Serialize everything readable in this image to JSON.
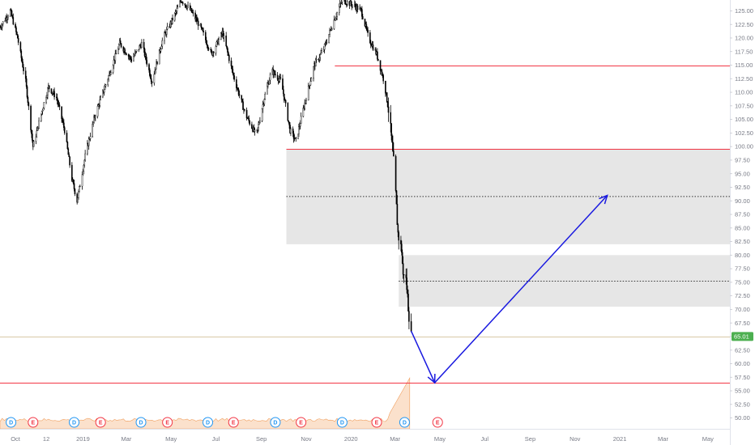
{
  "chart_data": {
    "type": "candlestick",
    "title": "",
    "xlabel": "",
    "ylabel": "",
    "ylim": [
      48,
      127
    ],
    "x_range": [
      "2018-09-10",
      "2021-05-31"
    ],
    "y_ticks": [
      "50.00",
      "52.50",
      "55.00",
      "57.50",
      "60.00",
      "62.50",
      "65.00",
      "67.50",
      "70.00",
      "72.50",
      "75.00",
      "77.50",
      "80.00",
      "82.50",
      "85.00",
      "87.50",
      "90.00",
      "92.50",
      "95.00",
      "97.50",
      "100.00",
      "102.50",
      "105.00",
      "107.50",
      "110.00",
      "112.50",
      "115.00",
      "117.50",
      "120.00",
      "122.50",
      "125.00"
    ],
    "x_ticks": [
      {
        "label": "Oct",
        "date": "2018-10-01"
      },
      {
        "label": "12",
        "date": "2018-11-12"
      },
      {
        "label": "2019",
        "date": "2019-01-01"
      },
      {
        "label": "Mar",
        "date": "2019-03-01"
      },
      {
        "label": "May",
        "date": "2019-05-01"
      },
      {
        "label": "Jul",
        "date": "2019-07-01"
      },
      {
        "label": "Sep",
        "date": "2019-09-01"
      },
      {
        "label": "Nov",
        "date": "2019-11-01"
      },
      {
        "label": "2020",
        "date": "2020-01-01"
      },
      {
        "label": "Mar",
        "date": "2020-03-01"
      },
      {
        "label": "May",
        "date": "2020-05-01"
      },
      {
        "label": "Jul",
        "date": "2020-07-01"
      },
      {
        "label": "Sep",
        "date": "2020-09-01"
      },
      {
        "label": "Nov",
        "date": "2020-11-01"
      },
      {
        "label": "2021",
        "date": "2021-01-01"
      },
      {
        "label": "Mar",
        "date": "2021-03-01"
      },
      {
        "label": "May",
        "date": "2021-05-01"
      }
    ],
    "last_price": "65.01",
    "price_path": [
      [
        "2018-09-10",
        122
      ],
      [
        "2018-09-24",
        125
      ],
      [
        "2018-10-04",
        120
      ],
      [
        "2018-10-15",
        112
      ],
      [
        "2018-10-25",
        100
      ],
      [
        "2018-11-05",
        106
      ],
      [
        "2018-11-15",
        111
      ],
      [
        "2018-11-26",
        109
      ],
      [
        "2018-12-07",
        103
      ],
      [
        "2018-12-17",
        94
      ],
      [
        "2018-12-24",
        90
      ],
      [
        "2019-01-05",
        99
      ],
      [
        "2019-01-18",
        106
      ],
      [
        "2019-02-05",
        113
      ],
      [
        "2019-02-20",
        119
      ],
      [
        "2019-03-08",
        116
      ],
      [
        "2019-03-22",
        119
      ],
      [
        "2019-04-05",
        112
      ],
      [
        "2019-04-20",
        120
      ],
      [
        "2019-05-05",
        124
      ],
      [
        "2019-05-15",
        127
      ],
      [
        "2019-05-28",
        125
      ],
      [
        "2019-06-10",
        122
      ],
      [
        "2019-06-25",
        117
      ],
      [
        "2019-07-10",
        121
      ],
      [
        "2019-07-25",
        113
      ],
      [
        "2019-08-10",
        106
      ],
      [
        "2019-08-25",
        102
      ],
      [
        "2019-09-05",
        109
      ],
      [
        "2019-09-15",
        114
      ],
      [
        "2019-09-28",
        112
      ],
      [
        "2019-10-10",
        103
      ],
      [
        "2019-10-18",
        101
      ],
      [
        "2019-10-30",
        108
      ],
      [
        "2019-11-12",
        115
      ],
      [
        "2019-11-25",
        118
      ],
      [
        "2019-12-08",
        123
      ],
      [
        "2019-12-20",
        127
      ],
      [
        "2020-01-05",
        126
      ],
      [
        "2020-01-15",
        125
      ],
      [
        "2020-01-25",
        120
      ],
      [
        "2020-02-05",
        117
      ],
      [
        "2020-02-15",
        112
      ],
      [
        "2020-02-22",
        106
      ],
      [
        "2020-02-26",
        100
      ],
      [
        "2020-02-28",
        97
      ],
      [
        "2020-03-02",
        91
      ],
      [
        "2020-03-05",
        84
      ],
      [
        "2020-03-08",
        82
      ],
      [
        "2020-03-10",
        81
      ],
      [
        "2020-03-12",
        76
      ],
      [
        "2020-03-14",
        78
      ],
      [
        "2020-03-17",
        74
      ],
      [
        "2020-03-20",
        69
      ],
      [
        "2020-03-23",
        65.01
      ]
    ],
    "horizontal_lines": [
      {
        "price": 115.0,
        "from": "2019-12-10",
        "color": "#f23645"
      },
      {
        "price": 99.6,
        "from": "2019-10-05",
        "color": "#f23645"
      },
      {
        "price": 56.5,
        "from": "2018-09-10",
        "color": "#f23645"
      },
      {
        "price": 65.01,
        "from": "2018-09-10",
        "color": "#d8c9a6"
      }
    ],
    "zones": [
      {
        "from": "2019-10-05",
        "to": "2021-05-31",
        "top": 99.6,
        "bottom": 82.0,
        "mid": 90.8,
        "color": "#e6e6e6"
      },
      {
        "from": "2020-03-06",
        "to": "2021-05-31",
        "top": 80.0,
        "bottom": 70.5,
        "mid": 75.2,
        "color": "#e6e6e6"
      }
    ],
    "projection": {
      "color": "#1a1ae0",
      "points": [
        [
          "2020-03-23",
          66.0
        ],
        [
          "2020-04-24",
          56.5
        ],
        [
          "2020-12-15",
          91.0
        ]
      ]
    },
    "volume_area_color": "#f7c9a3",
    "events": [
      {
        "label": "D",
        "date": "2018-09-25",
        "color": "#2196f3"
      },
      {
        "label": "E",
        "date": "2018-10-25",
        "color": "#f23645"
      },
      {
        "label": "D",
        "date": "2018-12-20",
        "color": "#2196f3"
      },
      {
        "label": "E",
        "date": "2019-01-25",
        "color": "#f23645"
      },
      {
        "label": "D",
        "date": "2019-03-21",
        "color": "#2196f3"
      },
      {
        "label": "E",
        "date": "2019-04-26",
        "color": "#f23645"
      },
      {
        "label": "D",
        "date": "2019-06-20",
        "color": "#2196f3"
      },
      {
        "label": "E",
        "date": "2019-07-25",
        "color": "#f23645"
      },
      {
        "label": "D",
        "date": "2019-09-20",
        "color": "#2196f3"
      },
      {
        "label": "E",
        "date": "2019-10-25",
        "color": "#f23645"
      },
      {
        "label": "D",
        "date": "2019-12-20",
        "color": "#2196f3"
      },
      {
        "label": "E",
        "date": "2020-02-05",
        "color": "#f23645"
      },
      {
        "label": "D",
        "date": "2020-03-14",
        "color": "#2196f3"
      },
      {
        "label": "E",
        "date": "2020-04-28",
        "color": "#f23645"
      }
    ]
  }
}
